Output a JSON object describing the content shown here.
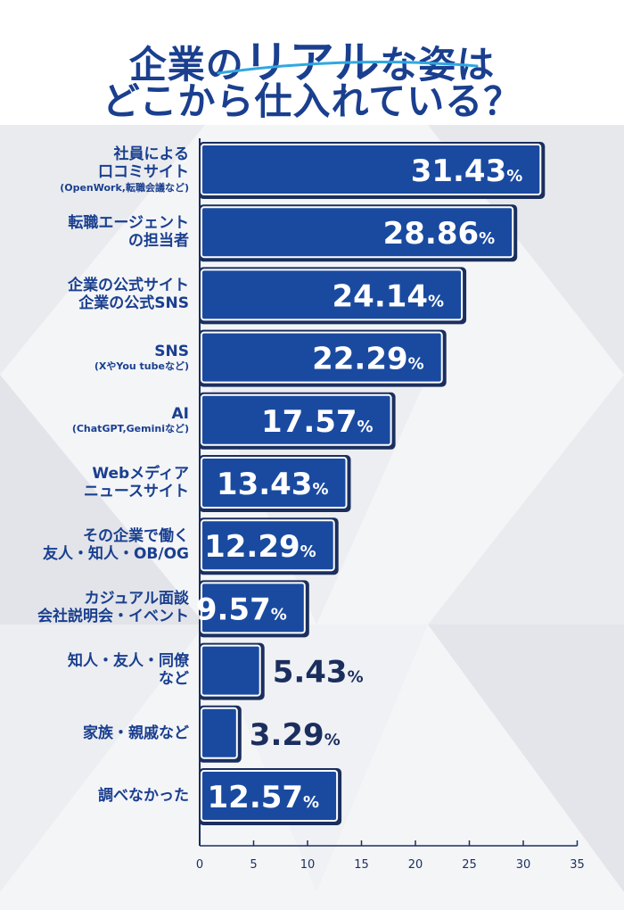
{
  "title": {
    "line1_pre": "企業の",
    "line1_emph": "リアル",
    "line1_post": "な姿は",
    "line2": "どこから仕入れている？"
  },
  "chart_data": {
    "type": "bar",
    "orientation": "horizontal",
    "categories": [
      {
        "lines": [
          "社員による",
          "口コミサイト"
        ],
        "sub": "(OpenWork,転職会議など)"
      },
      {
        "lines": [
          "転職エージェント",
          "の担当者"
        ],
        "sub": ""
      },
      {
        "lines": [
          "企業の公式サイト",
          "企業の公式SNS"
        ],
        "sub": ""
      },
      {
        "lines": [
          "SNS"
        ],
        "sub": "(XやYou tubeなど)"
      },
      {
        "lines": [
          "AI"
        ],
        "sub": "(ChatGPT,Geminiなど)"
      },
      {
        "lines": [
          "Webメディア",
          "ニュースサイト"
        ],
        "sub": ""
      },
      {
        "lines": [
          "その企業で働く",
          "友人・知人・OB/OG"
        ],
        "sub": ""
      },
      {
        "lines": [
          "カジュアル面談",
          "会社説明会・イベント"
        ],
        "sub": ""
      },
      {
        "lines": [
          "知人・友人・同僚",
          "など"
        ],
        "sub": ""
      },
      {
        "lines": [
          "家族・親戚など"
        ],
        "sub": ""
      },
      {
        "lines": [
          "調べなかった"
        ],
        "sub": ""
      }
    ],
    "values": [
      31.43,
      28.86,
      24.14,
      22.29,
      17.57,
      13.43,
      12.29,
      9.57,
      5.43,
      3.29,
      12.57
    ],
    "value_labels": [
      "31.43",
      "28.86",
      "24.14",
      "22.29",
      "17.57",
      "13.43",
      "12.29",
      "9.57",
      "5.43",
      "3.29",
      "12.57"
    ],
    "unit": "%",
    "x_ticks": [
      "0",
      "5",
      "10",
      "15",
      "20",
      "25",
      "30",
      "35"
    ],
    "xlim": [
      0,
      35
    ],
    "grid": false,
    "colors": {
      "bar": "#1a4aa0",
      "bar_outline": "#1b2f5e",
      "label": "#1a3f8f",
      "title": "#1a3f8f",
      "accent": "#2fa8e0"
    }
  }
}
